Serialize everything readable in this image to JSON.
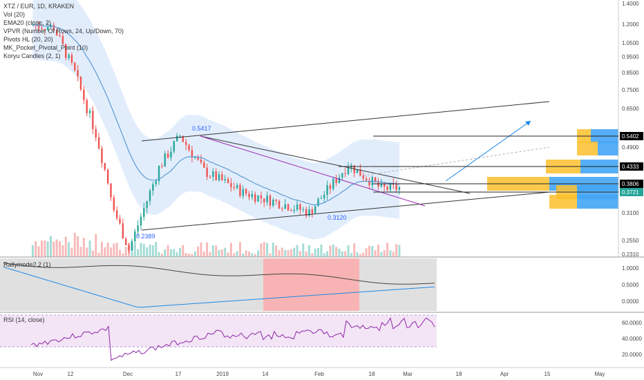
{
  "header": {
    "title": "XTZ / EUR, 1D, KRAKEN",
    "indicators": [
      "Vol (20)",
      "EMA20 (close, 2)",
      "VPVR (Number Of Rows, 24, Up/Down, 70)",
      "Pivots HL (20, 20)",
      "MK_Pocket_Pivotal_Point (10)",
      "Koryu Candles (2, 1)"
    ]
  },
  "annotations": {
    "high_label": "0.5417",
    "low_label": "0.2389",
    "mid_low_label": "0.3120"
  },
  "price_axis": {
    "ticks": [
      "1.4000",
      "1.2000",
      "1.0500",
      "0.9500",
      "0.8500",
      "0.7500",
      "0.6500",
      "0.4900",
      "0.3100",
      "0.2550",
      "0.2310"
    ],
    "badges": [
      {
        "value": "0.5402",
        "color": "#000000"
      },
      {
        "value": "0.4333",
        "color": "#000000"
      },
      {
        "value": "0.3806",
        "color": "#000000"
      },
      {
        "value": "0.3721",
        "color": "#26a69a"
      }
    ]
  },
  "time_axis": [
    "Nov",
    "12",
    "Dec",
    "17",
    "2019",
    "14",
    "Feb",
    "18",
    "Mar",
    "18",
    "Apr",
    "15",
    "May"
  ],
  "subpanels": {
    "rally": {
      "title": "Rallymode2.2 (1)",
      "ticks": [
        "1.0000",
        "0.5000",
        "0.0000"
      ]
    },
    "rsi": {
      "title": "RSI (14, close)",
      "ticks": [
        "60.0000",
        "40.0000",
        "20.0000"
      ]
    }
  },
  "colors": {
    "up": "#26a69a",
    "down": "#ef5350",
    "ema": "#5b9bd5",
    "bands": "#dbe8fb",
    "vpvr_up": "#fbc02d",
    "vpvr_down": "#42a5f5",
    "rsi_line": "#8e24aa"
  },
  "chart_data": {
    "type": "candlestick",
    "symbol": "XTZ / EUR",
    "interval": "1D",
    "exchange": "KRAKEN",
    "ohlc_close_approx": [
      {
        "date": "2018-11-05",
        "close": 1.2
      },
      {
        "date": "2018-11-12",
        "close": 1.18
      },
      {
        "date": "2018-11-19",
        "close": 0.85
      },
      {
        "date": "2018-11-26",
        "close": 0.55
      },
      {
        "date": "2018-12-03",
        "close": 0.3
      },
      {
        "date": "2018-12-07",
        "close": 0.2389
      },
      {
        "date": "2018-12-17",
        "close": 0.43
      },
      {
        "date": "2018-12-24",
        "close": 0.5417
      },
      {
        "date": "2019-01-01",
        "close": 0.42
      },
      {
        "date": "2019-01-14",
        "close": 0.36
      },
      {
        "date": "2019-01-28",
        "close": 0.33
      },
      {
        "date": "2019-02-05",
        "close": 0.312
      },
      {
        "date": "2019-02-18",
        "close": 0.44
      },
      {
        "date": "2019-03-01",
        "close": 0.37
      },
      {
        "date": "2019-03-08",
        "close": 0.3721
      }
    ],
    "levels": [
      0.5402,
      0.4333,
      0.3806,
      0.3721
    ],
    "rsi_ticks": [
      20,
      40,
      60
    ],
    "rally_ticks": [
      0,
      0.5,
      1
    ]
  }
}
